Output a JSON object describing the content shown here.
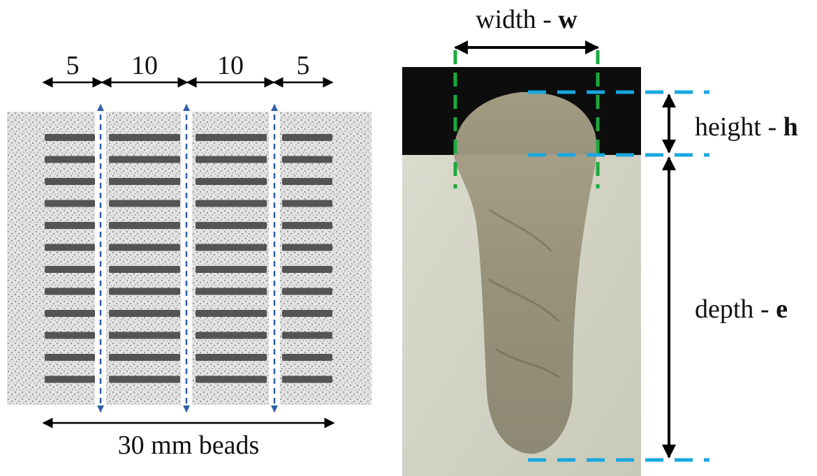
{
  "left_panel": {
    "segment_labels": [
      "5",
      "10",
      "10",
      "5"
    ],
    "bottom_label": "30 mm beads",
    "bead_count": 12,
    "cut_line_count": 3
  },
  "right_panel": {
    "width": {
      "text": "width - ",
      "symbol": "w"
    },
    "height": {
      "text": "height - ",
      "symbol": "h"
    },
    "depth": {
      "text": "depth - ",
      "symbol": "e"
    }
  },
  "colors": {
    "bead": "#545454",
    "cut_line": "#2f5fa8",
    "width_box": "#1aaa3c",
    "height_depth_guides": "#19a7e0",
    "arrow": "#000000",
    "sample_bg": "#d8d8cc",
    "mount_bg": "#0d0d0d"
  }
}
